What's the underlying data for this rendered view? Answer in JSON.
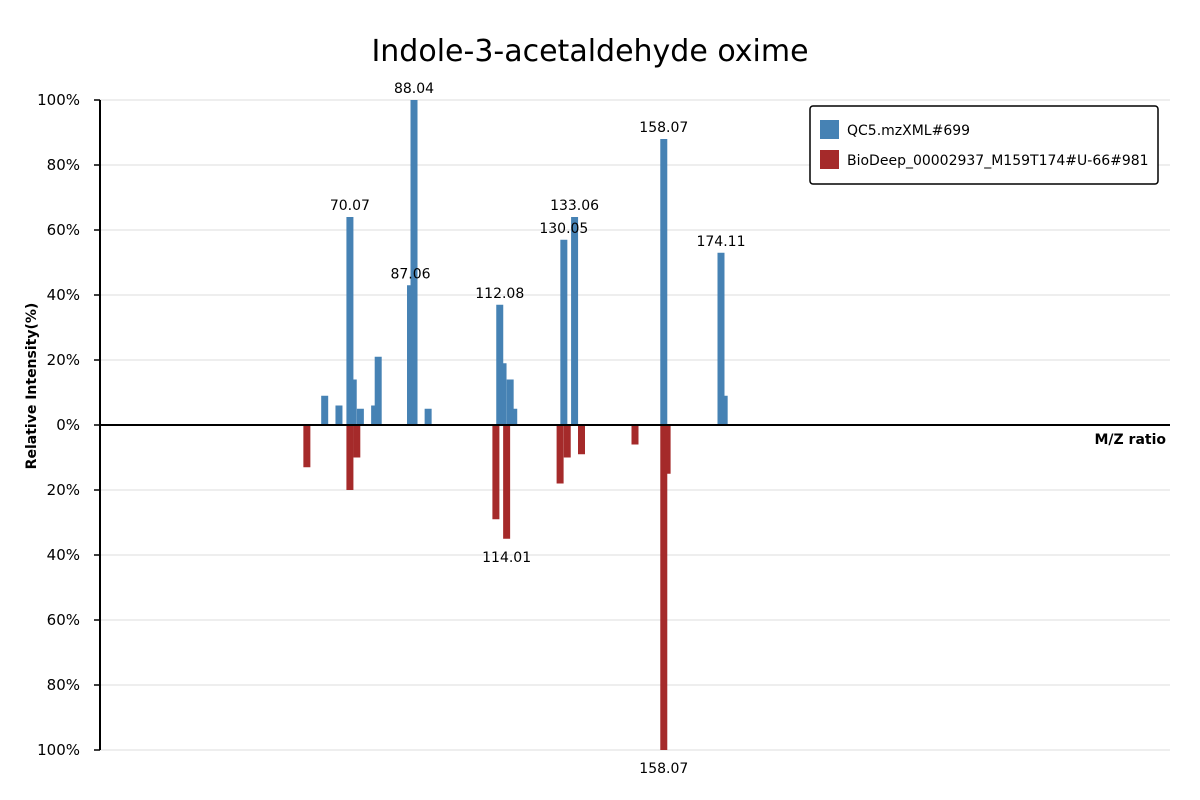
{
  "chart_data": {
    "type": "bar",
    "title": "Indole-3-acetaldehyde oxime",
    "xlabel": "M/Z ratio",
    "ylabel": "Relative Intensity(%)",
    "y_ticks_top": [
      "100%",
      "80%",
      "60%",
      "40%",
      "20%",
      "0%"
    ],
    "y_ticks_bottom": [
      "20%",
      "40%",
      "60%",
      "80%",
      "100%"
    ],
    "grid": true,
    "legend_position": "top-right",
    "xlim": [
      0,
      300
    ],
    "ylim": [
      -100,
      100
    ],
    "series": [
      {
        "name": "QC5.mzXML#699",
        "color": "#4682b4",
        "direction": "up",
        "peaks": [
          {
            "mz": 63.0,
            "intensity": 9
          },
          {
            "mz": 67.0,
            "intensity": 6
          },
          {
            "mz": 70.07,
            "intensity": 64,
            "label": "70.07"
          },
          {
            "mz": 71.0,
            "intensity": 14
          },
          {
            "mz": 73.0,
            "intensity": 5
          },
          {
            "mz": 77.0,
            "intensity": 6
          },
          {
            "mz": 78.0,
            "intensity": 21
          },
          {
            "mz": 87.06,
            "intensity": 43,
            "label": "87.06"
          },
          {
            "mz": 88.04,
            "intensity": 100,
            "label": "88.04"
          },
          {
            "mz": 92.0,
            "intensity": 5
          },
          {
            "mz": 112.08,
            "intensity": 37,
            "label": "112.08"
          },
          {
            "mz": 113.0,
            "intensity": 19
          },
          {
            "mz": 115.0,
            "intensity": 14
          },
          {
            "mz": 116.0,
            "intensity": 5
          },
          {
            "mz": 130.05,
            "intensity": 57,
            "label": "130.05"
          },
          {
            "mz": 133.06,
            "intensity": 64,
            "label": "133.06"
          },
          {
            "mz": 158.07,
            "intensity": 88,
            "label": "158.07"
          },
          {
            "mz": 174.11,
            "intensity": 53,
            "label": "174.11"
          },
          {
            "mz": 175.0,
            "intensity": 9
          }
        ]
      },
      {
        "name": "BioDeep_00002937_M159T174#U-66#981",
        "color": "#a52a2a",
        "direction": "down",
        "peaks": [
          {
            "mz": 58.0,
            "intensity": 13
          },
          {
            "mz": 70.07,
            "intensity": 20
          },
          {
            "mz": 72.0,
            "intensity": 10
          },
          {
            "mz": 111.0,
            "intensity": 29
          },
          {
            "mz": 114.01,
            "intensity": 35,
            "label": "114.01"
          },
          {
            "mz": 129.0,
            "intensity": 18
          },
          {
            "mz": 131.0,
            "intensity": 10
          },
          {
            "mz": 135.0,
            "intensity": 9
          },
          {
            "mz": 150.0,
            "intensity": 6
          },
          {
            "mz": 158.07,
            "intensity": 100,
            "label": "158.07"
          },
          {
            "mz": 159.0,
            "intensity": 15
          }
        ]
      }
    ]
  }
}
